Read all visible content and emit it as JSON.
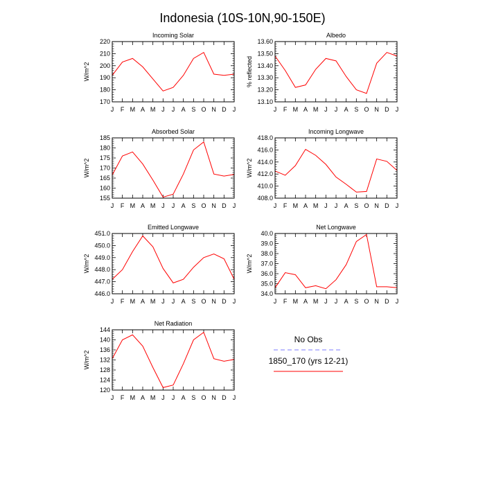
{
  "figure_title": "Indonesia (10S-10N,90-150E)",
  "months": [
    "J",
    "F",
    "M",
    "A",
    "M",
    "J",
    "J",
    "A",
    "S",
    "O",
    "N",
    "D",
    "J"
  ],
  "legend": {
    "obs_label": "No Obs",
    "obs_color": "#7b7bff",
    "model_label": "1850_170 (yrs 12-21)",
    "model_color": "#ff0000"
  },
  "chart_data": [
    {
      "type": "line",
      "title": "Incoming Solar",
      "ylabel": "W/m^2",
      "ylim": [
        170,
        220
      ],
      "yticks": [
        170,
        180,
        190,
        200,
        210,
        220
      ],
      "ytick_labels": [
        "170",
        "180",
        "190",
        "200",
        "210",
        "220"
      ],
      "categories": [
        "J",
        "F",
        "M",
        "A",
        "M",
        "J",
        "J",
        "A",
        "S",
        "O",
        "N",
        "D",
        "J"
      ],
      "series": [
        {
          "values": [
            192,
            203,
            206,
            199,
            189,
            179,
            182,
            192,
            206,
            211,
            193,
            192,
            193
          ]
        }
      ]
    },
    {
      "type": "line",
      "title": "Albedo",
      "ylabel": "% reflected",
      "ylim": [
        13.1,
        13.6
      ],
      "yticks": [
        13.1,
        13.2,
        13.3,
        13.4,
        13.5,
        13.6
      ],
      "ytick_labels": [
        "13.10",
        "13.20",
        "13.30",
        "13.40",
        "13.50",
        "13.60"
      ],
      "categories": [
        "J",
        "F",
        "M",
        "A",
        "M",
        "J",
        "J",
        "A",
        "S",
        "O",
        "N",
        "D",
        "J"
      ],
      "series": [
        {
          "values": [
            13.48,
            13.36,
            13.22,
            13.24,
            13.37,
            13.46,
            13.44,
            13.31,
            13.2,
            13.17,
            13.42,
            13.51,
            13.48
          ]
        }
      ]
    },
    {
      "type": "line",
      "title": "Absorbed Solar",
      "ylabel": "W/m^2",
      "ylim": [
        155,
        185
      ],
      "yticks": [
        155,
        160,
        165,
        170,
        175,
        180,
        185
      ],
      "ytick_labels": [
        "155",
        "160",
        "165",
        "170",
        "175",
        "180",
        "185"
      ],
      "categories": [
        "J",
        "F",
        "M",
        "A",
        "M",
        "J",
        "J",
        "A",
        "S",
        "O",
        "N",
        "D",
        "J"
      ],
      "series": [
        {
          "values": [
            166.5,
            176,
            178,
            172,
            164,
            155.5,
            157,
            167,
            179,
            183,
            167,
            166,
            166.8
          ]
        }
      ]
    },
    {
      "type": "line",
      "title": "Incoming Longwave",
      "ylabel": "W/m^2",
      "ylim": [
        408,
        418
      ],
      "yticks": [
        408,
        410,
        412,
        414,
        416,
        418
      ],
      "ytick_labels": [
        "408.0",
        "410.0",
        "412.0",
        "414.0",
        "416.0",
        "418.0"
      ],
      "categories": [
        "J",
        "F",
        "M",
        "A",
        "M",
        "J",
        "J",
        "A",
        "S",
        "O",
        "N",
        "D",
        "J"
      ],
      "series": [
        {
          "values": [
            412.5,
            411.8,
            413.4,
            416.1,
            415.1,
            413.6,
            411.5,
            410.3,
            409.0,
            409.1,
            414.5,
            414.1,
            412.6
          ]
        }
      ]
    },
    {
      "type": "line",
      "title": "Emitted Longwave",
      "ylabel": "W/m^2",
      "ylim": [
        446,
        451
      ],
      "yticks": [
        446,
        447,
        448,
        449,
        450,
        451
      ],
      "ytick_labels": [
        "446.0",
        "447.0",
        "448.0",
        "449.0",
        "450.0",
        "451.0"
      ],
      "categories": [
        "J",
        "F",
        "M",
        "A",
        "M",
        "J",
        "J",
        "A",
        "S",
        "O",
        "N",
        "D",
        "J"
      ],
      "series": [
        {
          "values": [
            447.2,
            448.0,
            449.5,
            450.8,
            449.9,
            448.1,
            446.9,
            447.2,
            448.2,
            449.0,
            449.3,
            448.9,
            447.2
          ]
        }
      ]
    },
    {
      "type": "line",
      "title": "Net Longwave",
      "ylabel": "W/m^2",
      "ylim": [
        34,
        40
      ],
      "yticks": [
        34,
        35,
        36,
        37,
        38,
        39,
        40
      ],
      "ytick_labels": [
        "34.0",
        "35.0",
        "36.0",
        "37.0",
        "38.0",
        "39.0",
        "40.0"
      ],
      "categories": [
        "J",
        "F",
        "M",
        "A",
        "M",
        "J",
        "J",
        "A",
        "S",
        "O",
        "N",
        "D",
        "J"
      ],
      "series": [
        {
          "values": [
            34.6,
            36.1,
            35.9,
            34.6,
            34.8,
            34.5,
            35.4,
            36.9,
            39.2,
            39.9,
            34.7,
            34.7,
            34.6
          ]
        }
      ]
    },
    {
      "type": "line",
      "title": "Net Radiation",
      "ylabel": "W/m^2",
      "ylim": [
        120,
        144
      ],
      "yticks": [
        120,
        124,
        128,
        132,
        136,
        140,
        144
      ],
      "ytick_labels": [
        "120",
        "124",
        "128",
        "132",
        "136",
        "140",
        "144"
      ],
      "categories": [
        "J",
        "F",
        "M",
        "A",
        "M",
        "J",
        "J",
        "A",
        "S",
        "O",
        "N",
        "D",
        "J"
      ],
      "series": [
        {
          "values": [
            132.5,
            140,
            142,
            137.5,
            129,
            121,
            122,
            130.5,
            140,
            143,
            132.5,
            131.5,
            132.2
          ]
        }
      ]
    }
  ]
}
